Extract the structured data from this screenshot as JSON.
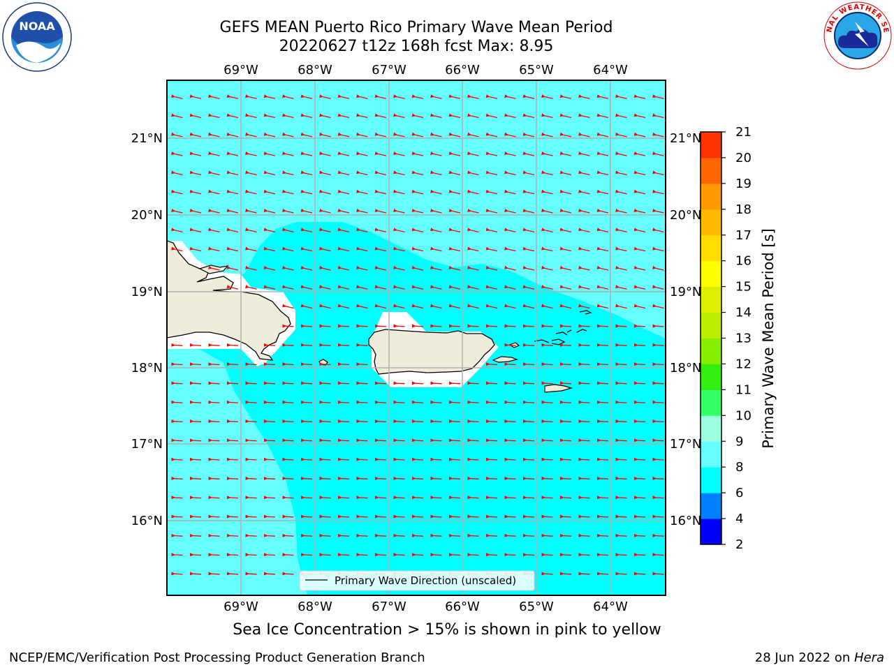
{
  "title_line1": "GEFS MEAN Puerto Rico Primary Wave Mean Period",
  "title_line2": "20220627 t12z 168h fcst   Max: 8.95",
  "subtitle": "Sea Ice Concentration > 15% is shown in pink to yellow",
  "footer_left": "NCEP/EMC/Verification Post Processing Product Generation Branch",
  "footer_right_date": "28 Jun 2022 on ",
  "footer_right_host": "Hera",
  "logos": {
    "left": "NOAA",
    "right": "NATIONAL WEATHER SERVICE"
  },
  "map": {
    "lon_labels": [
      "69°W",
      "68°W",
      "67°W",
      "66°W",
      "65°W",
      "64°W"
    ],
    "lat_labels": [
      "21°N",
      "20°N",
      "19°N",
      "18°N",
      "17°N",
      "16°N"
    ],
    "legend_label": "Primary Wave Direction (unscaled)",
    "colors": {
      "sea_light": "#66ffff",
      "sea": "#00ffff",
      "land": "#efecdc",
      "arrow": "#ff0000",
      "grid": "#b0b0b0"
    }
  },
  "colorbar": {
    "label": "Primary Wave Mean Period [s]",
    "ticks": [
      "2",
      "4",
      "6",
      "8",
      "9",
      "10",
      "11",
      "12",
      "13",
      "14",
      "15",
      "16",
      "17",
      "18",
      "19",
      "20",
      "21"
    ],
    "colors": [
      "#0000ff",
      "#0080ff",
      "#00ffff",
      "#66ffff",
      "#99ffe0",
      "#33ff66",
      "#33ee11",
      "#88ee00",
      "#bbee00",
      "#ddee00",
      "#ffff00",
      "#ffdd00",
      "#ffbb00",
      "#ff9900",
      "#ff6600",
      "#ff3300",
      "#ff0000"
    ]
  }
}
